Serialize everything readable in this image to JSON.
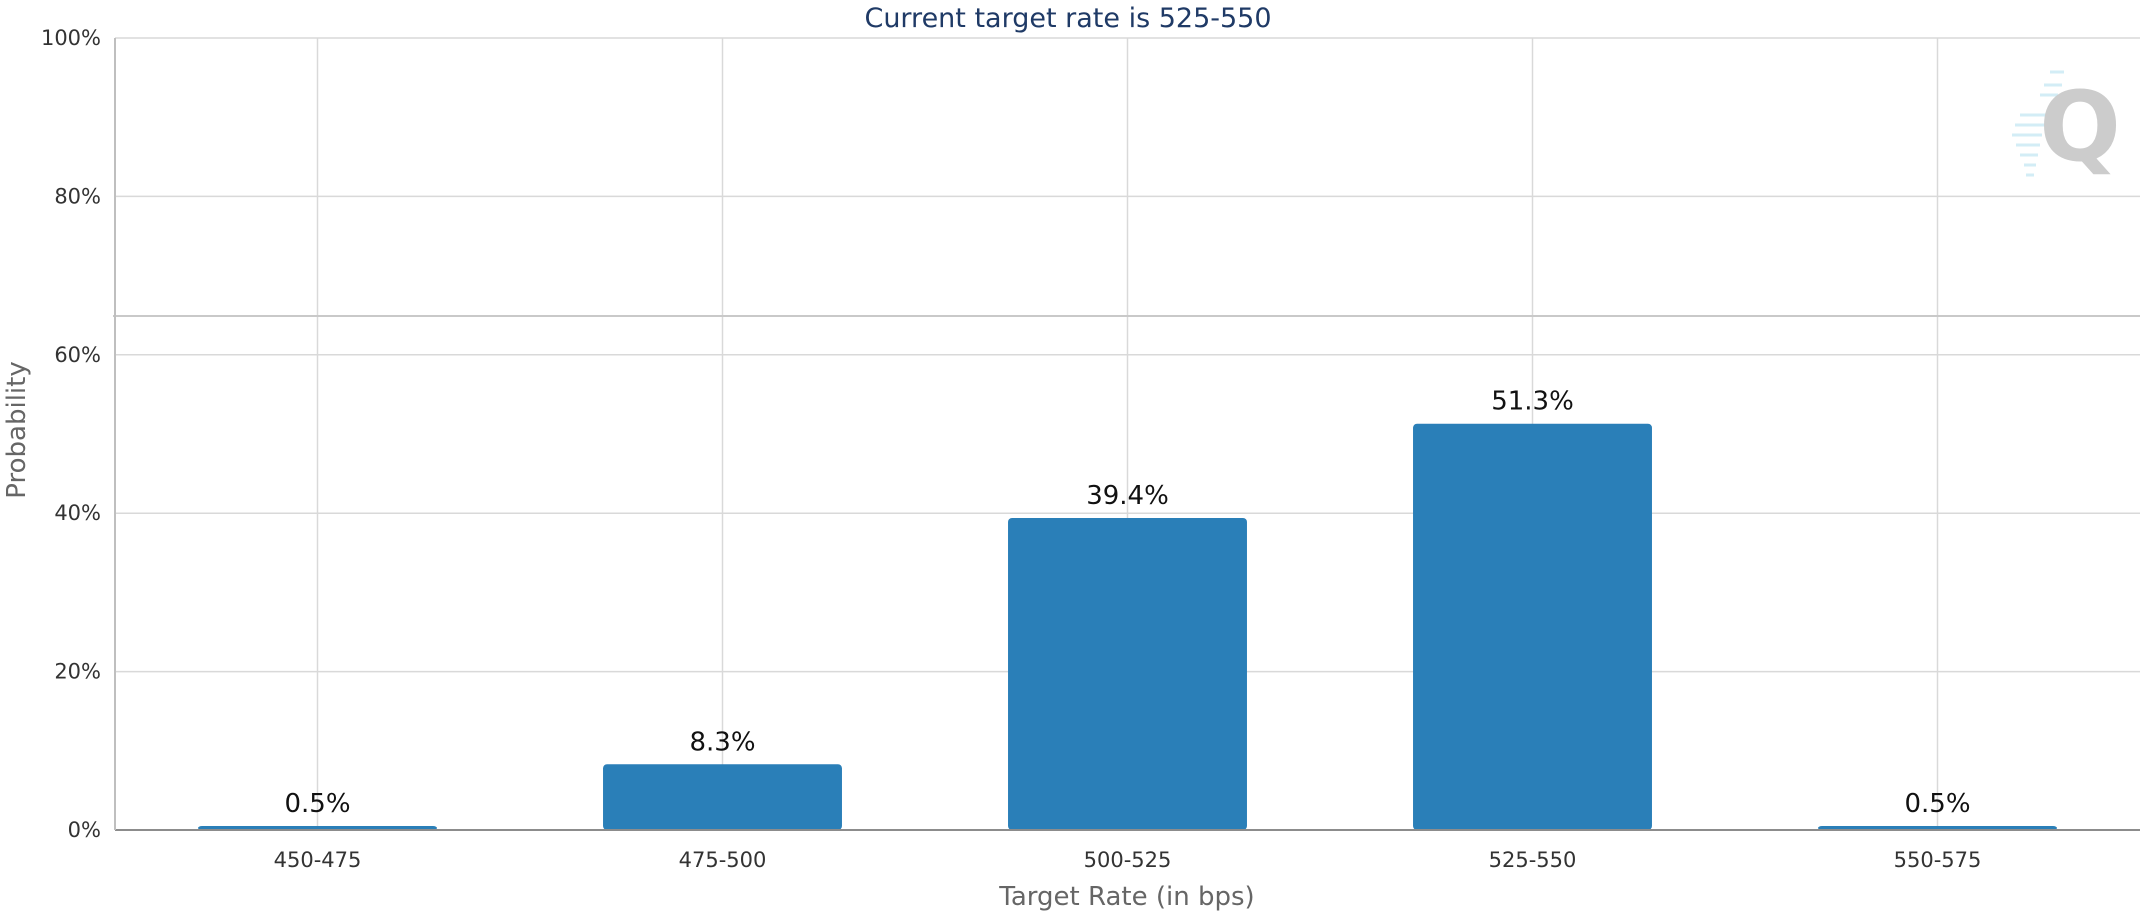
{
  "chart_data": {
    "type": "bar",
    "title": "Current target rate is 525-550",
    "xlabel": "Target Rate (in bps)",
    "ylabel": "Probability",
    "categories": [
      "450-475",
      "475-500",
      "500-525",
      "525-550",
      "550-575"
    ],
    "values": [
      0.5,
      8.3,
      39.4,
      51.3,
      0.5
    ],
    "value_labels": [
      "0.5%",
      "8.3%",
      "39.4%",
      "51.3%",
      "0.5%"
    ],
    "ylim": [
      0,
      100
    ],
    "y_ticks": [
      0,
      20,
      40,
      60,
      80,
      100
    ],
    "y_tick_labels": [
      "0%",
      "20%",
      "40%",
      "60%",
      "80%",
      "100%"
    ],
    "grid": true,
    "bar_color": "#2a7fb8"
  }
}
